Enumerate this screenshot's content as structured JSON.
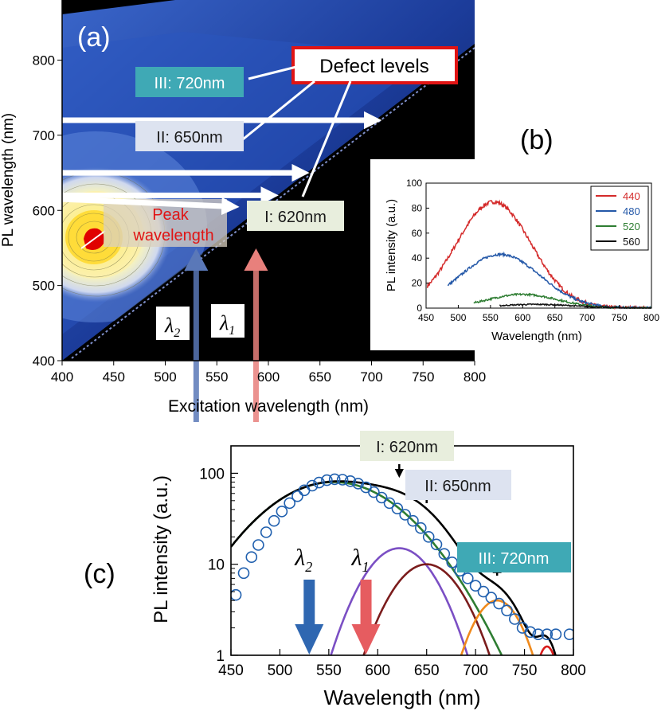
{
  "chart_data": [
    {
      "type": "heatmap",
      "panel_label": "(a)",
      "xlabel": "Excitation wavelength (nm)",
      "ylabel": "PL wavelength (nm)",
      "xlim": [
        400,
        800
      ],
      "ylim": [
        400,
        880
      ],
      "xticks": [
        400,
        450,
        500,
        550,
        600,
        650,
        700,
        750,
        800
      ],
      "yticks": [
        400,
        500,
        600,
        700,
        800
      ],
      "peak": {
        "excitation": 430,
        "emission": 550,
        "label_line1": "Peak",
        "label_line2": "wavelength"
      },
      "defect_callout": "Defect levels",
      "levels": [
        {
          "id": "I",
          "label": "I: 620nm",
          "emission": 620,
          "color": "#e8eedd"
        },
        {
          "id": "II",
          "label": "II: 650nm",
          "emission": 650,
          "color": "#dde3f0"
        },
        {
          "id": "III",
          "label": "III: 720nm",
          "emission": 720,
          "color": "#3fa9b5"
        }
      ],
      "excitation_arrows": [
        {
          "name": "lambda2",
          "symbol": "λ",
          "sub": "2",
          "excitation": 530,
          "color": "#5a78b8"
        },
        {
          "name": "lambda1",
          "symbol": "λ",
          "sub": "1",
          "excitation": 588,
          "color": "#e8807c"
        }
      ]
    },
    {
      "type": "line",
      "panel_label": "(b)",
      "xlabel": "Wavelength (nm)",
      "ylabel": "PL intensity (a.u.)",
      "xlim": [
        450,
        800
      ],
      "ylim": [
        0,
        100
      ],
      "xticks": [
        450,
        500,
        550,
        600,
        650,
        700,
        750,
        800
      ],
      "yticks": [
        0,
        20,
        40,
        60,
        80,
        100
      ],
      "legend_position": "top-right",
      "series": [
        {
          "name": "440",
          "color": "#d42a2a",
          "start": 452,
          "peak_x": 555,
          "peak_y": 85,
          "width": 58,
          "tail": 3
        },
        {
          "name": "480",
          "color": "#2458a8",
          "start": 484,
          "peak_x": 565,
          "peak_y": 43,
          "width": 62,
          "tail": 2
        },
        {
          "name": "520",
          "color": "#2e7d32",
          "start": 524,
          "peak_x": 600,
          "peak_y": 11,
          "width": 55,
          "tail": 1.5
        },
        {
          "name": "560",
          "color": "#111111",
          "start": 564,
          "peak_x": 620,
          "peak_y": 3,
          "width": 60,
          "tail": 1
        }
      ]
    },
    {
      "type": "line",
      "panel_label": "(c)",
      "xlabel": "Wavelength (nm)",
      "ylabel": "PL intensity (a.u.)",
      "yscale": "log",
      "xlim": [
        450,
        800
      ],
      "ylim": [
        1,
        200
      ],
      "xticks": [
        450,
        500,
        550,
        600,
        650,
        700,
        750,
        800
      ],
      "yticks": [
        1,
        10,
        100
      ],
      "components": [
        {
          "name": "main",
          "color": "#2e7d32",
          "center": 555,
          "amp": 80,
          "sigma": 58
        },
        {
          "name": "I",
          "color": "#7b4fc4",
          "center": 622,
          "amp": 15,
          "sigma": 30
        },
        {
          "name": "II",
          "color": "#7b1c1c",
          "center": 650,
          "amp": 10,
          "sigma": 30
        },
        {
          "name": "III",
          "color": "#f08a1c",
          "center": 722,
          "amp": 4,
          "sigma": 22
        },
        {
          "name": "IV",
          "color": "#d81b1b",
          "center": 773,
          "amp": 1.25,
          "sigma": 10
        }
      ],
      "fit_color": "#000000",
      "data_points": [
        [
          455,
          4.6
        ],
        [
          463,
          8.0
        ],
        [
          471,
          12
        ],
        [
          478,
          16.3
        ],
        [
          486,
          22.5
        ],
        [
          494,
          30
        ],
        [
          502,
          38
        ],
        [
          510,
          47
        ],
        [
          518,
          56
        ],
        [
          525,
          65
        ],
        [
          533,
          73
        ],
        [
          540,
          79
        ],
        [
          548,
          84
        ],
        [
          556,
          86
        ],
        [
          564,
          85
        ],
        [
          572,
          82
        ],
        [
          580,
          77
        ],
        [
          588,
          70
        ],
        [
          596,
          62
        ],
        [
          604,
          54
        ],
        [
          612,
          47
        ],
        [
          620,
          41
        ],
        [
          628,
          35
        ],
        [
          636,
          30
        ],
        [
          644,
          25
        ],
        [
          652,
          20
        ],
        [
          660,
          16.5
        ],
        [
          668,
          13
        ],
        [
          676,
          10.5
        ],
        [
          684,
          8.5
        ],
        [
          692,
          7
        ],
        [
          700,
          5.8
        ],
        [
          708,
          5.0
        ],
        [
          716,
          4.3
        ],
        [
          724,
          3.7
        ],
        [
          732,
          3.1
        ],
        [
          740,
          2.5
        ],
        [
          748,
          2.0
        ],
        [
          756,
          1.8
        ],
        [
          764,
          1.7
        ],
        [
          773,
          1.7
        ],
        [
          782,
          1.7
        ],
        [
          796,
          1.7
        ]
      ],
      "annotations": [
        {
          "label": "I: 620nm",
          "x": 622,
          "color": "#e8eedd"
        },
        {
          "label": "II: 650nm",
          "x": 650,
          "color": "#dde3f0"
        },
        {
          "label": "III: 720nm",
          "x": 722,
          "color": "#3fa9b5"
        }
      ],
      "excitation_arrows": [
        {
          "name": "lambda2",
          "symbol": "λ",
          "sub": "2",
          "x": 530,
          "color": "#2f67b1"
        },
        {
          "name": "lambda1",
          "symbol": "λ",
          "sub": "1",
          "x": 588,
          "color": "#e65c60"
        }
      ]
    }
  ]
}
